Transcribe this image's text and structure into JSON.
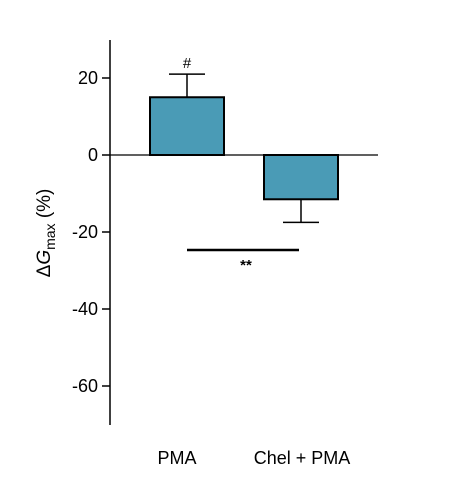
{
  "chart_data": {
    "type": "bar",
    "categories": [
      "PMA",
      "Chel + PMA"
    ],
    "values": [
      15,
      -11.5
    ],
    "error_bars": [
      6,
      6
    ],
    "bar_color": "#4a9bb6",
    "ylim": [
      -70,
      30
    ],
    "yticks": [
      20,
      0,
      -20,
      -40,
      -60
    ],
    "ylabel": {
      "prefix": "Δ",
      "main": "G",
      "sub": "max",
      "suffix": " (%)"
    },
    "annotations": {
      "bar_marker": "#",
      "significance": "**"
    },
    "grid": false
  }
}
